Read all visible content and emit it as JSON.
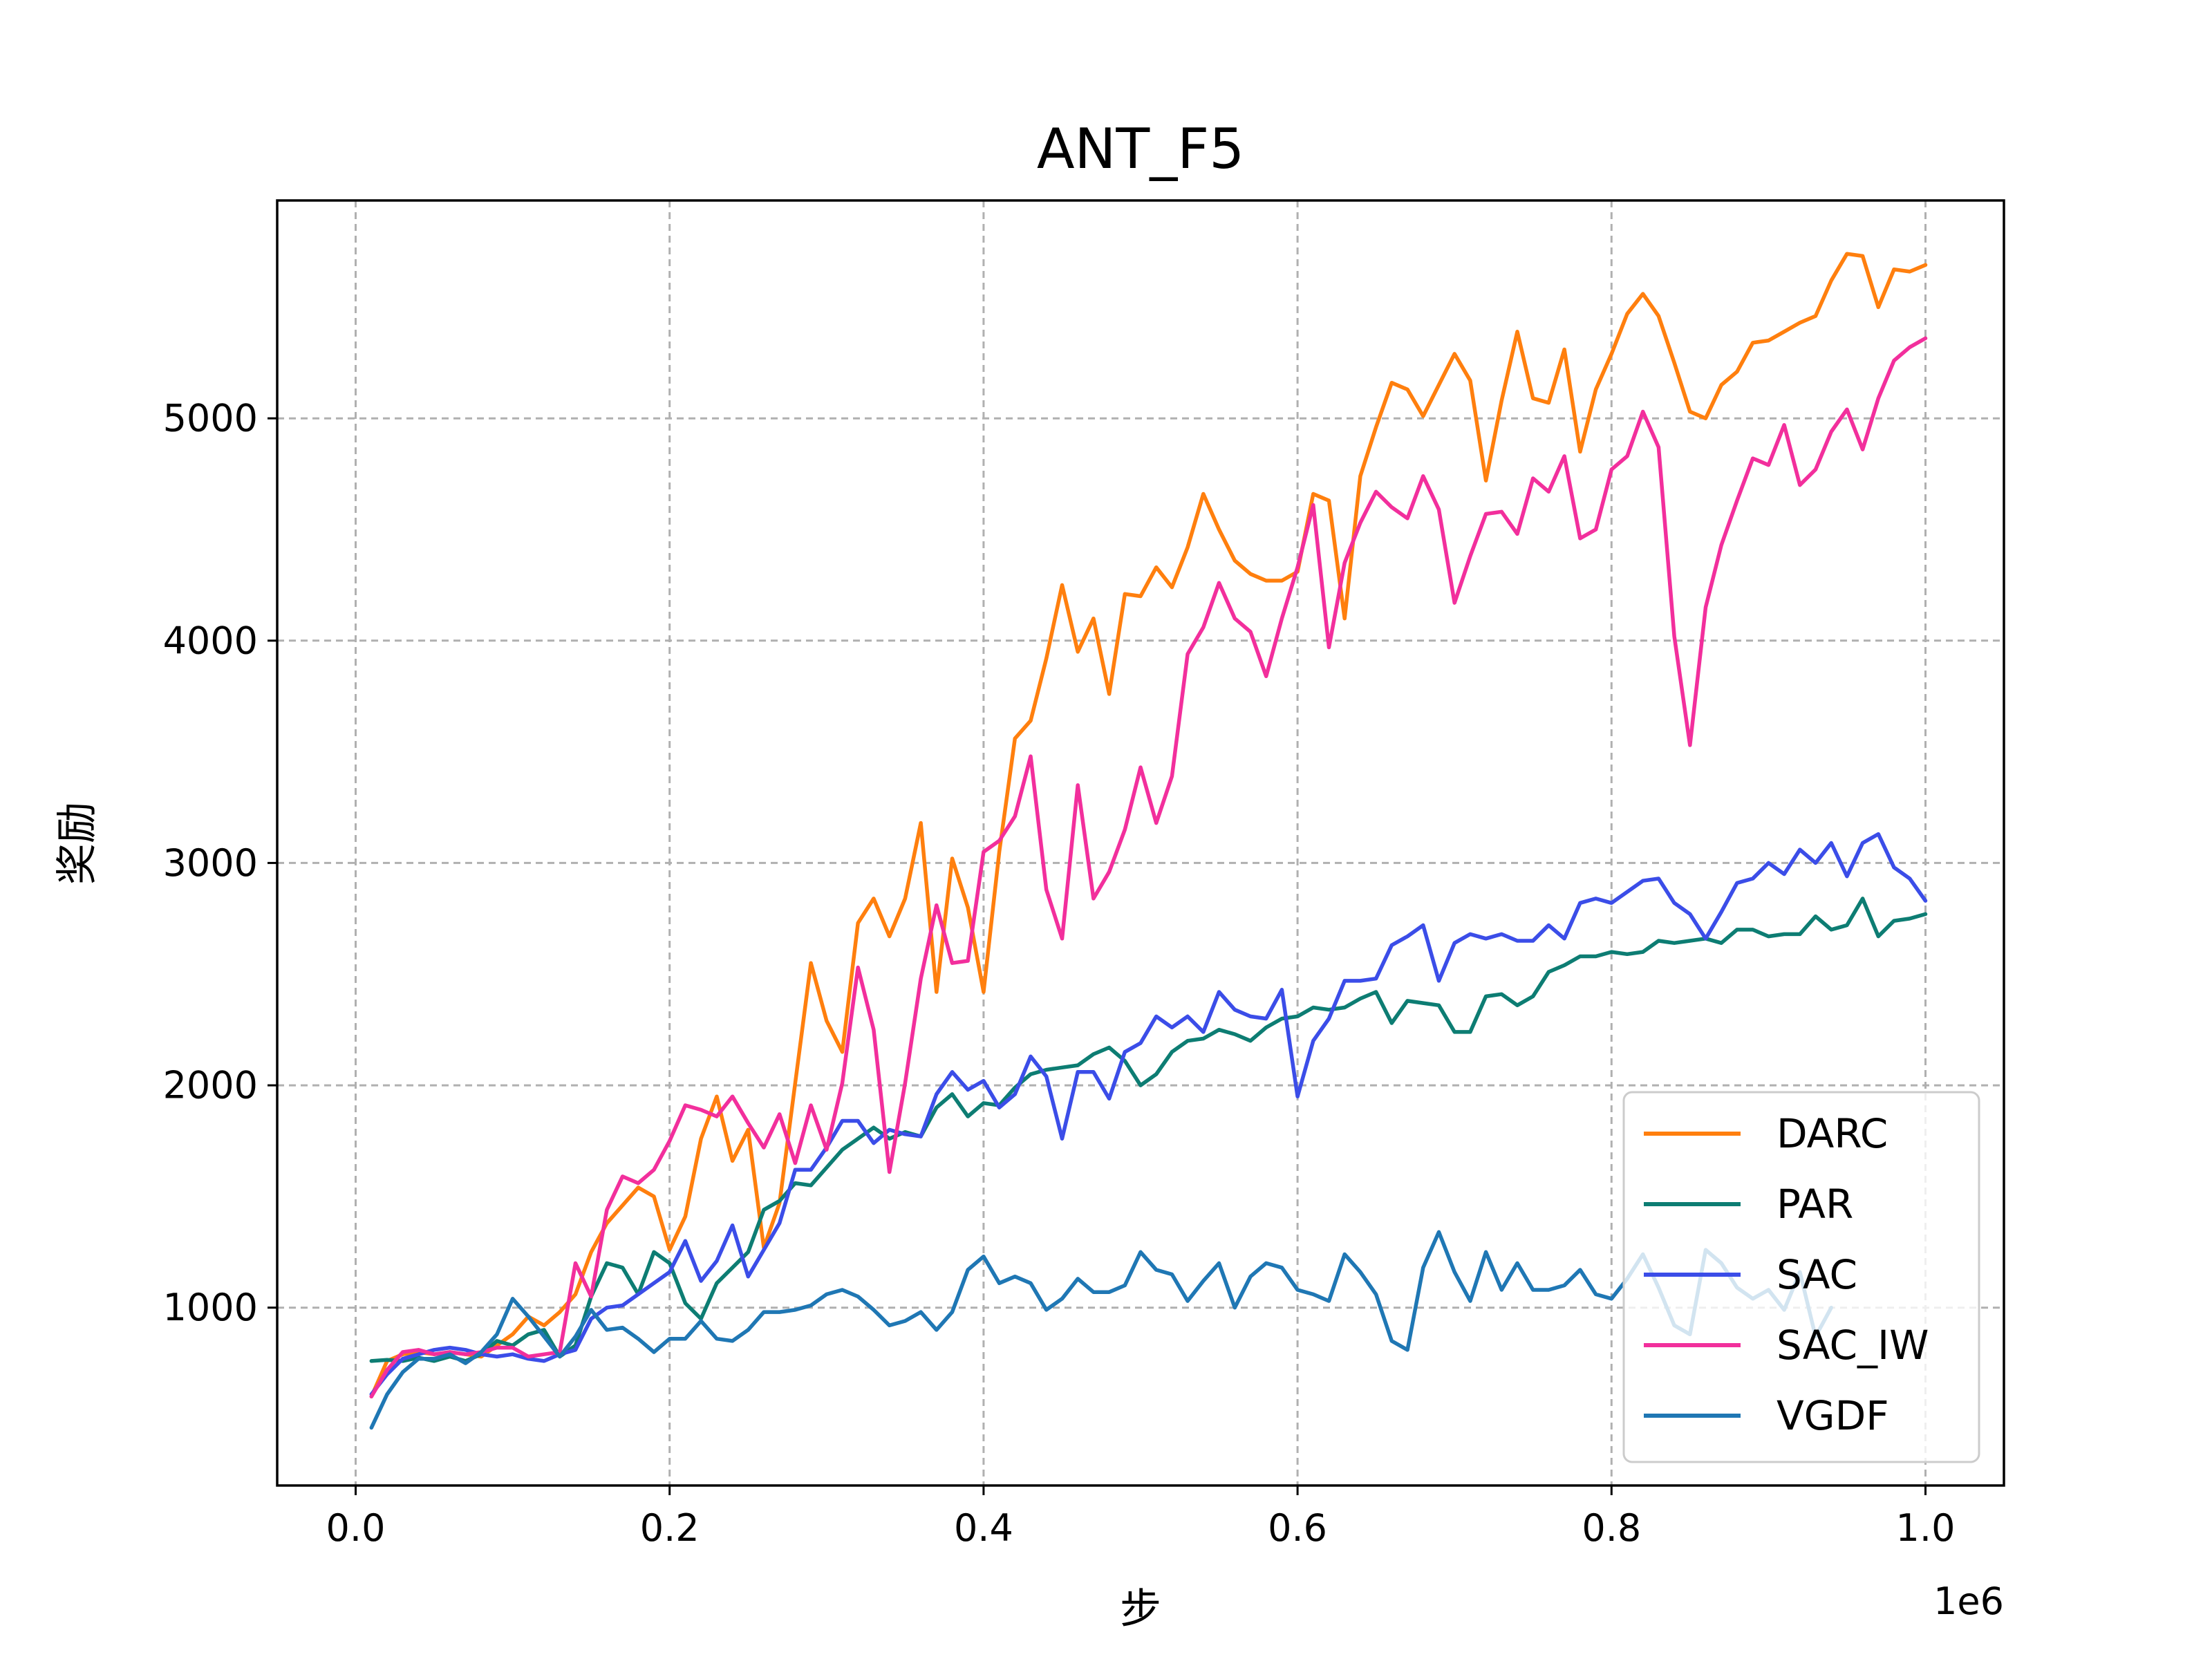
{
  "chart_data": {
    "type": "line",
    "title": "ANT_F5",
    "xlabel": "步",
    "ylabel": "奖励",
    "x_offset_label": "1e6",
    "xlim": [
      -0.05,
      1.05
    ],
    "ylim": [
      200,
      5980
    ],
    "x_ticks": [
      0.0,
      0.2,
      0.4,
      0.6,
      0.8,
      1.0
    ],
    "x_tick_labels": [
      "0.0",
      "0.2",
      "0.4",
      "0.6",
      "0.8",
      "1.0"
    ],
    "y_ticks": [
      1000,
      2000,
      3000,
      4000,
      5000
    ],
    "y_tick_labels": [
      "1000",
      "2000",
      "3000",
      "4000",
      "5000"
    ],
    "grid": true,
    "legend_position": "lower right",
    "series": [
      {
        "name": "DARC",
        "color": "#ff7f0e",
        "x": [
          0.01,
          0.02,
          0.03,
          0.04,
          0.05,
          0.06,
          0.07,
          0.08,
          0.09,
          0.1,
          0.11,
          0.12,
          0.13,
          0.14,
          0.15,
          0.16,
          0.17,
          0.18,
          0.19,
          0.2,
          0.21,
          0.22,
          0.23,
          0.24,
          0.25,
          0.26,
          0.27,
          0.28,
          0.29,
          0.3,
          0.31,
          0.32,
          0.33,
          0.34,
          0.35,
          0.36,
          0.37,
          0.38,
          0.39,
          0.4,
          0.41,
          0.42,
          0.43,
          0.44,
          0.45,
          0.46,
          0.47,
          0.48,
          0.49,
          0.5,
          0.51,
          0.52,
          0.53,
          0.54,
          0.55,
          0.56,
          0.57,
          0.58,
          0.59,
          0.6,
          0.61,
          0.62,
          0.63,
          0.64,
          0.65,
          0.66,
          0.67,
          0.68,
          0.69,
          0.7,
          0.71,
          0.72,
          0.73,
          0.74,
          0.75,
          0.76,
          0.77,
          0.78,
          0.79,
          0.8,
          0.81,
          0.82,
          0.83,
          0.84,
          0.85,
          0.86,
          0.87,
          0.88,
          0.89,
          0.9,
          0.91,
          0.92,
          0.93,
          0.94,
          0.95,
          0.96,
          0.97,
          0.98,
          0.99,
          1.0
        ],
        "y": [
          600,
          760,
          790,
          800,
          790,
          800,
          790,
          780,
          830,
          880,
          960,
          920,
          980,
          1060,
          1250,
          1380,
          1460,
          1540,
          1500,
          1260,
          1410,
          1760,
          1950,
          1660,
          1800,
          1270,
          1470,
          2010,
          2550,
          2290,
          2150,
          2730,
          2840,
          2670,
          2840,
          3180,
          2420,
          3020,
          2800,
          2420,
          3050,
          3560,
          3640,
          3920,
          4250,
          3950,
          4100,
          3760,
          4210,
          4200,
          4330,
          4240,
          4420,
          4660,
          4500,
          4360,
          4300,
          4270,
          4270,
          4310,
          4660,
          4630,
          4100,
          4740,
          4960,
          5160,
          5130,
          5010,
          5150,
          5290,
          5170,
          4720,
          5080,
          5390,
          5090,
          5070,
          5310,
          4850,
          5130,
          5290,
          5470,
          5560,
          5460,
          5250,
          5030,
          5000,
          5150,
          5210,
          5340,
          5350,
          5390,
          5430,
          5460,
          5620,
          5740,
          5730,
          5500,
          5670,
          5660,
          5690
        ]
      },
      {
        "name": "PAR",
        "color": "#0d7d73",
        "x": [
          0.01,
          0.02,
          0.03,
          0.04,
          0.05,
          0.06,
          0.07,
          0.08,
          0.09,
          0.1,
          0.11,
          0.12,
          0.13,
          0.14,
          0.15,
          0.16,
          0.17,
          0.18,
          0.19,
          0.2,
          0.21,
          0.22,
          0.23,
          0.24,
          0.25,
          0.26,
          0.27,
          0.28,
          0.29,
          0.3,
          0.31,
          0.32,
          0.33,
          0.34,
          0.35,
          0.36,
          0.37,
          0.38,
          0.39,
          0.4,
          0.41,
          0.42,
          0.43,
          0.44,
          0.45,
          0.46,
          0.47,
          0.48,
          0.49,
          0.5,
          0.51,
          0.52,
          0.53,
          0.54,
          0.55,
          0.56,
          0.57,
          0.58,
          0.59,
          0.6,
          0.61,
          0.62,
          0.63,
          0.64,
          0.65,
          0.66,
          0.67,
          0.68,
          0.69,
          0.7,
          0.71,
          0.72,
          0.73,
          0.74,
          0.75,
          0.76,
          0.77,
          0.78,
          0.79,
          0.8,
          0.81,
          0.82,
          0.83,
          0.84,
          0.85,
          0.86,
          0.87,
          0.88,
          0.89,
          0.9,
          0.91,
          0.92,
          0.93,
          0.94,
          0.95,
          0.96,
          0.97,
          0.98,
          0.99,
          1.0
        ],
        "y": [
          760,
          765,
          760,
          775,
          760,
          780,
          760,
          790,
          850,
          830,
          880,
          900,
          780,
          830,
          1050,
          1200,
          1180,
          1060,
          1250,
          1200,
          1020,
          950,
          1110,
          1180,
          1250,
          1440,
          1480,
          1560,
          1550,
          1630,
          1710,
          1760,
          1810,
          1760,
          1790,
          1770,
          1900,
          1960,
          1860,
          1920,
          1910,
          1990,
          2050,
          2070,
          2080,
          2090,
          2140,
          2170,
          2110,
          2000,
          2050,
          2150,
          2200,
          2210,
          2250,
          2230,
          2200,
          2260,
          2300,
          2310,
          2350,
          2340,
          2350,
          2390,
          2420,
          2280,
          2380,
          2370,
          2360,
          2240,
          2240,
          2400,
          2410,
          2360,
          2400,
          2510,
          2540,
          2580,
          2580,
          2600,
          2590,
          2600,
          2650,
          2640,
          2650,
          2660,
          2640,
          2700,
          2700,
          2670,
          2680,
          2680,
          2760,
          2700,
          2720,
          2840,
          2670,
          2740,
          2750,
          2770
        ]
      },
      {
        "name": "SAC",
        "color": "#3b4de8",
        "x": [
          0.01,
          0.02,
          0.03,
          0.04,
          0.05,
          0.06,
          0.07,
          0.08,
          0.09,
          0.1,
          0.11,
          0.12,
          0.13,
          0.14,
          0.15,
          0.16,
          0.17,
          0.18,
          0.19,
          0.2,
          0.21,
          0.22,
          0.23,
          0.24,
          0.25,
          0.26,
          0.27,
          0.28,
          0.29,
          0.3,
          0.31,
          0.32,
          0.33,
          0.34,
          0.35,
          0.36,
          0.37,
          0.38,
          0.39,
          0.4,
          0.41,
          0.42,
          0.43,
          0.44,
          0.45,
          0.46,
          0.47,
          0.48,
          0.49,
          0.5,
          0.51,
          0.52,
          0.53,
          0.54,
          0.55,
          0.56,
          0.57,
          0.58,
          0.59,
          0.6,
          0.61,
          0.62,
          0.63,
          0.64,
          0.65,
          0.66,
          0.67,
          0.68,
          0.69,
          0.7,
          0.71,
          0.72,
          0.73,
          0.74,
          0.75,
          0.76,
          0.77,
          0.78,
          0.79,
          0.8,
          0.81,
          0.82,
          0.83,
          0.84,
          0.85,
          0.86,
          0.87,
          0.88,
          0.89,
          0.9,
          0.91,
          0.92,
          0.93,
          0.94,
          0.95,
          0.96,
          0.97,
          0.98,
          0.99,
          1.0
        ],
        "y": [
          610,
          700,
          770,
          790,
          810,
          820,
          810,
          790,
          780,
          790,
          770,
          760,
          790,
          810,
          950,
          1000,
          1010,
          1060,
          1110,
          1160,
          1300,
          1120,
          1210,
          1370,
          1140,
          1260,
          1380,
          1620,
          1620,
          1720,
          1840,
          1840,
          1740,
          1800,
          1780,
          1770,
          1960,
          2060,
          1980,
          2020,
          1900,
          1960,
          2130,
          2040,
          1760,
          2060,
          2060,
          1940,
          2150,
          2190,
          2310,
          2260,
          2310,
          2240,
          2420,
          2340,
          2310,
          2300,
          2430,
          1950,
          2200,
          2300,
          2470,
          2470,
          2480,
          2630,
          2670,
          2720,
          2470,
          2640,
          2680,
          2660,
          2680,
          2650,
          2650,
          2720,
          2660,
          2820,
          2840,
          2820,
          2870,
          2920,
          2930,
          2820,
          2770,
          2660,
          2780,
          2910,
          2930,
          3000,
          2950,
          3060,
          3000,
          3090,
          2940,
          3090,
          3130,
          2980,
          2930,
          2830
        ]
      },
      {
        "name": "SAC_IW",
        "color": "#f22f9c",
        "x": [
          0.01,
          0.02,
          0.03,
          0.04,
          0.05,
          0.06,
          0.07,
          0.08,
          0.09,
          0.1,
          0.11,
          0.12,
          0.13,
          0.14,
          0.15,
          0.16,
          0.17,
          0.18,
          0.19,
          0.2,
          0.21,
          0.22,
          0.23,
          0.24,
          0.25,
          0.26,
          0.27,
          0.28,
          0.29,
          0.3,
          0.31,
          0.32,
          0.33,
          0.34,
          0.35,
          0.36,
          0.37,
          0.38,
          0.39,
          0.4,
          0.41,
          0.42,
          0.43,
          0.44,
          0.45,
          0.46,
          0.47,
          0.48,
          0.49,
          0.5,
          0.51,
          0.52,
          0.53,
          0.54,
          0.55,
          0.56,
          0.57,
          0.58,
          0.59,
          0.6,
          0.61,
          0.62,
          0.63,
          0.64,
          0.65,
          0.66,
          0.67,
          0.68,
          0.69,
          0.7,
          0.71,
          0.72,
          0.73,
          0.74,
          0.75,
          0.76,
          0.77,
          0.78,
          0.79,
          0.8,
          0.81,
          0.82,
          0.83,
          0.84,
          0.85,
          0.86,
          0.87,
          0.88,
          0.89,
          0.9,
          0.91,
          0.92,
          0.93,
          0.94,
          0.95,
          0.96,
          0.97,
          0.98,
          0.99,
          1.0
        ],
        "y": [
          600,
          720,
          800,
          810,
          790,
          800,
          790,
          800,
          820,
          820,
          780,
          790,
          800,
          1200,
          1050,
          1440,
          1590,
          1560,
          1620,
          1750,
          1910,
          1890,
          1860,
          1950,
          1830,
          1720,
          1870,
          1650,
          1910,
          1710,
          2010,
          2530,
          2250,
          1610,
          2010,
          2480,
          2810,
          2550,
          2560,
          3050,
          3100,
          3210,
          3480,
          2880,
          2660,
          3350,
          2840,
          2960,
          3150,
          3430,
          3180,
          3390,
          3940,
          4060,
          4260,
          4100,
          4040,
          3840,
          4100,
          4330,
          4610,
          3970,
          4350,
          4530,
          4670,
          4600,
          4550,
          4740,
          4590,
          4170,
          4380,
          4570,
          4580,
          4480,
          4730,
          4670,
          4830,
          4460,
          4500,
          4770,
          4830,
          5030,
          4870,
          4020,
          3530,
          4150,
          4430,
          4630,
          4820,
          4790,
          4970,
          4700,
          4770,
          4940,
          5040,
          4860,
          5090,
          5260,
          5320,
          5360
        ]
      },
      {
        "name": "VGDF",
        "color": "#1f77b4",
        "x": [
          0.01,
          0.02,
          0.03,
          0.04,
          0.05,
          0.06,
          0.07,
          0.08,
          0.09,
          0.1,
          0.11,
          0.12,
          0.13,
          0.14,
          0.15,
          0.16,
          0.17,
          0.18,
          0.19,
          0.2,
          0.21,
          0.22,
          0.23,
          0.24,
          0.25,
          0.26,
          0.27,
          0.28,
          0.29,
          0.3,
          0.31,
          0.32,
          0.33,
          0.34,
          0.35,
          0.36,
          0.37,
          0.38,
          0.39,
          0.4,
          0.41,
          0.42,
          0.43,
          0.44,
          0.45,
          0.46,
          0.47,
          0.48,
          0.49,
          0.5,
          0.51,
          0.52,
          0.53,
          0.54,
          0.55,
          0.56,
          0.57,
          0.58,
          0.59,
          0.6,
          0.61,
          0.62,
          0.63,
          0.64,
          0.65,
          0.66,
          0.67,
          0.68,
          0.69,
          0.7,
          0.71,
          0.72,
          0.73,
          0.74,
          0.75,
          0.76,
          0.77,
          0.78,
          0.79,
          0.8,
          0.81,
          0.82,
          0.83,
          0.84,
          0.85,
          0.86,
          0.87,
          0.88,
          0.89,
          0.9,
          0.91,
          0.92,
          0.93,
          0.94
        ],
        "y": [
          460,
          610,
          710,
          770,
          770,
          790,
          750,
          800,
          880,
          1040,
          960,
          870,
          780,
          870,
          990,
          900,
          910,
          860,
          800,
          860,
          860,
          940,
          860,
          850,
          900,
          980,
          980,
          990,
          1010,
          1060,
          1080,
          1050,
          990,
          920,
          940,
          980,
          900,
          980,
          1170,
          1230,
          1110,
          1140,
          1110,
          990,
          1040,
          1130,
          1070,
          1070,
          1100,
          1250,
          1170,
          1150,
          1030,
          1120,
          1200,
          1000,
          1140,
          1200,
          1180,
          1080,
          1060,
          1030,
          1240,
          1160,
          1060,
          850,
          810,
          1180,
          1340,
          1160,
          1030,
          1250,
          1080,
          1200,
          1080,
          1080,
          1100,
          1170,
          1060,
          1040,
          1130,
          1240,
          1090,
          920,
          880,
          1260,
          1200,
          1090,
          1040,
          1080,
          990,
          1160,
          870,
          1000
        ]
      }
    ]
  }
}
